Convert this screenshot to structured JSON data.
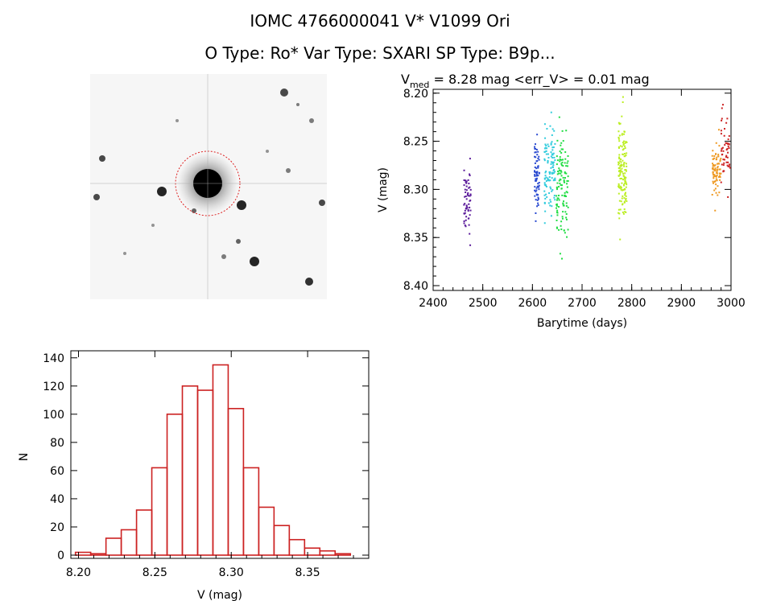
{
  "header": {
    "title_line1": "IOMC 4766000041     V* V1099 Ori",
    "title_line2": "O Type: Ro*  Var Type: SXARI  SP Type: B9p..."
  },
  "image_panel": {
    "circle_color": "#dd2222"
  },
  "chart_data": [
    {
      "type": "scatter",
      "title_main": "V",
      "title_sub": "med",
      "title_rest": " = 8.28 mag <err_V> = 0.01 mag",
      "xlabel": "Barytime (days)",
      "ylabel": "V (mag)",
      "xlim": [
        2400,
        3000
      ],
      "ylim": [
        8.4,
        8.2
      ],
      "y_inverted": true,
      "x_ticks": [
        2400,
        2500,
        2600,
        2700,
        2800,
        2900,
        3000
      ],
      "y_ticks": [
        "8.20",
        "8.25",
        "8.30",
        "8.35",
        "8.40"
      ],
      "groups": [
        {
          "x_range": [
            2462,
            2476
          ],
          "y_range": [
            8.268,
            8.358
          ],
          "center": 8.3,
          "color": "#5a1a9a",
          "n": 60
        },
        {
          "x_range": [
            2604,
            2614
          ],
          "y_range": [
            8.243,
            8.333
          ],
          "center": 8.285,
          "color": "#2a4ad0",
          "n": 70
        },
        {
          "x_range": [
            2624,
            2646
          ],
          "y_range": [
            8.22,
            8.335
          ],
          "center": 8.28,
          "color": "#33ccdd",
          "n": 110
        },
        {
          "x_range": [
            2648,
            2672
          ],
          "y_range": [
            8.225,
            8.372
          ],
          "center": 8.29,
          "color": "#22dd44",
          "n": 120
        },
        {
          "x_range": [
            2773,
            2790
          ],
          "y_range": [
            8.204,
            8.352
          ],
          "center": 8.285,
          "color": "#bbee22",
          "n": 140
        },
        {
          "x_range": [
            2962,
            2980
          ],
          "y_range": [
            8.238,
            8.322
          ],
          "center": 8.282,
          "color": "#ee9922",
          "n": 80
        },
        {
          "x_range": [
            2980,
            2998
          ],
          "y_range": [
            8.212,
            8.308
          ],
          "center": 8.262,
          "color": "#cc2222",
          "n": 50
        }
      ]
    },
    {
      "type": "bar",
      "xlabel": "V (mag)",
      "ylabel": "N",
      "xlim": [
        8.195,
        8.39
      ],
      "ylim": [
        0,
        140
      ],
      "x_ticks": [
        "8.20",
        "8.25",
        "8.30",
        "8.35"
      ],
      "y_ticks": [
        0,
        20,
        40,
        60,
        80,
        100,
        120,
        140
      ],
      "bin_width": 0.01,
      "bin_start": 8.203,
      "values": [
        2,
        1,
        12,
        18,
        32,
        62,
        100,
        120,
        117,
        135,
        104,
        62,
        34,
        21,
        11,
        5,
        3,
        1
      ],
      "bar_color": "#cc2222"
    }
  ]
}
